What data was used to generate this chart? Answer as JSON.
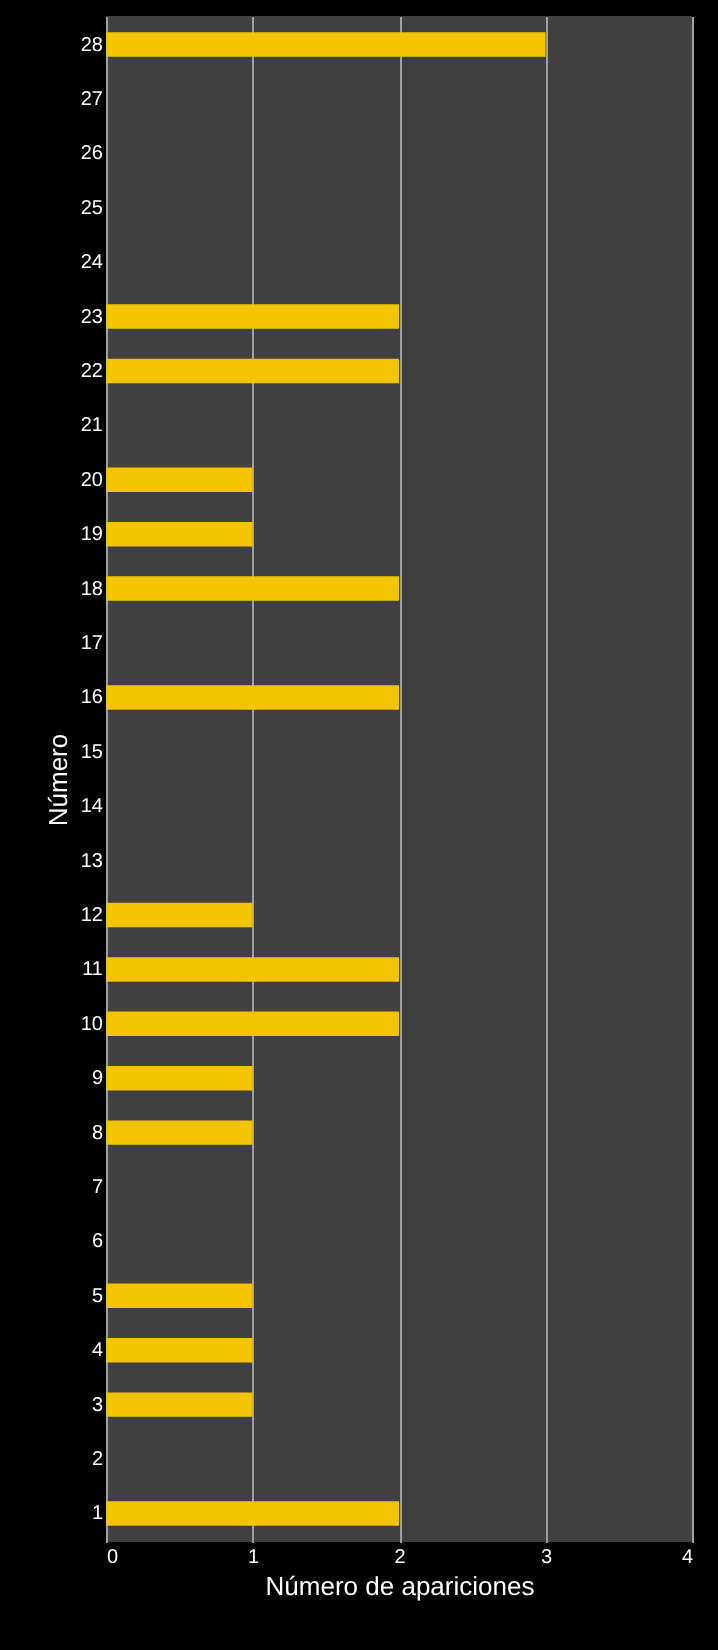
{
  "chart_data": {
    "type": "bar",
    "orientation": "horizontal",
    "xlabel": "Número  de apariciones",
    "ylabel": "Número",
    "categories": [
      "28",
      "27",
      "26",
      "25",
      "24",
      "23",
      "22",
      "21",
      "20",
      "19",
      "18",
      "17",
      "16",
      "15",
      "14",
      "13",
      "12",
      "11",
      "10",
      "9",
      "8",
      "7",
      "6",
      "5",
      "4",
      "3",
      "2",
      "1"
    ],
    "values": [
      3,
      0,
      0,
      0,
      0,
      2,
      2,
      0,
      1,
      1,
      2,
      0,
      2,
      0,
      0,
      0,
      1,
      2,
      2,
      1,
      1,
      0,
      0,
      1,
      1,
      1,
      0,
      2
    ],
    "color": "#f5c400",
    "xlim": [
      0,
      4
    ],
    "xticks": [
      0,
      1,
      2,
      3,
      4
    ],
    "grid": "x"
  }
}
